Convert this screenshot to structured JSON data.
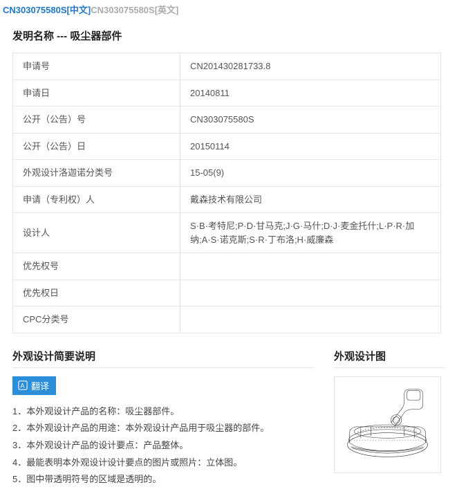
{
  "header": {
    "active_tab": "CN303075580S[中文]",
    "inactive_tab": "CN303075580S[英文]"
  },
  "title": {
    "prefix": "发明名称 --- ",
    "name": "吸尘器部件"
  },
  "info_rows": [
    {
      "label": "申请号",
      "value": "CN201430281733.8"
    },
    {
      "label": "申请日",
      "value": "20140811"
    },
    {
      "label": "公开（公告）号",
      "value": "CN303075580S"
    },
    {
      "label": "公开（公告）日",
      "value": "20150114"
    },
    {
      "label": "外观设计洛迦诺分类号",
      "value": "15-05(9)"
    },
    {
      "label": "申请（专利权）人",
      "value": "戴森技术有限公司"
    },
    {
      "label": "设计人",
      "value": "S·B·考特尼;P·D·甘马克;J·G·马什;D·J·麦金托什;L·P·R·加纳;A·S·诺克斯;S·R·丁布洛;H·威廉森"
    },
    {
      "label": "优先权号",
      "value": ""
    },
    {
      "label": "优先权日",
      "value": ""
    },
    {
      "label": "CPC分类号",
      "value": ""
    }
  ],
  "sections": {
    "left_title": "外观设计简要说明",
    "right_title": "外观设计图",
    "translate_label": "翻译"
  },
  "desc_items": [
    "1．本外观设计产品的名称：吸尘器部件。",
    "2．本外观设计产品的用途：本外观设计产品用于吸尘器的部件。",
    "3．本外观设计产品的设计要点：产品整体。",
    "4．最能表明本外观设计设计要点的图片或照片：立体图。",
    "5．图中带透明符号的区域是透明的。"
  ],
  "colors": {
    "link_active": "#2176c7",
    "link_inactive": "#aaaaaa",
    "border": "#e0e4e8",
    "button_bg": "#2a8fd8",
    "text": "#333333"
  }
}
